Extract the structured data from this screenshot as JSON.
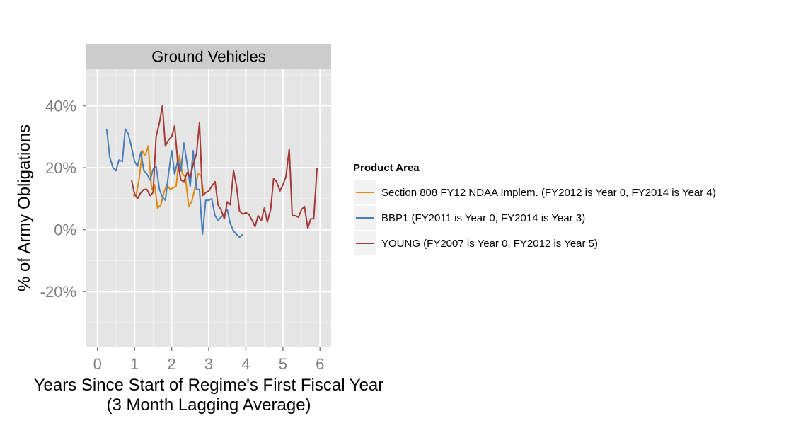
{
  "chart_data": {
    "type": "line",
    "facet_title": "Ground Vehicles",
    "xlabel_line1": "Years Since Start of Regime's First Fiscal Year",
    "xlabel_line2": "(3 Month Lagging Average)",
    "ylabel": "% of Army Obligations",
    "xlim": [
      -0.3,
      6.3
    ],
    "ylim": [
      -38,
      52
    ],
    "x_ticks": [
      0,
      1,
      2,
      3,
      4,
      5,
      6
    ],
    "x_tick_labels": [
      "0",
      "1",
      "2",
      "3",
      "4",
      "5",
      "6"
    ],
    "y_ticks": [
      -20,
      0,
      20,
      40
    ],
    "y_tick_labels": [
      "-20%",
      "0%",
      "20%",
      "40%"
    ],
    "grid": true,
    "legend": {
      "title": "Product Area",
      "position": "right"
    },
    "series": [
      {
        "name": "Section 808 FY12 NDAA Implem. (FY2012 is Year 0, FY2014 is Year 4)",
        "color": "#E08A0B",
        "x": [
          0.96,
          1.04,
          1.12,
          1.21,
          1.29,
          1.37,
          1.46,
          1.54,
          1.62,
          1.71,
          1.79,
          1.87,
          1.96,
          2.04,
          2.12,
          2.21,
          2.29,
          2.37,
          2.46,
          2.54,
          2.62,
          2.71,
          2.79,
          2.87
        ],
        "y": [
          11,
          11,
          16,
          25.5,
          24,
          27,
          13,
          14.5,
          7,
          8,
          12,
          14.5,
          13,
          13.5,
          14,
          24,
          18,
          17,
          7.5,
          9,
          13,
          18,
          17.5,
          11
        ]
      },
      {
        "name": "BBP1 (FY2011 is Year 0, FY2014 is Year 3)",
        "color": "#4A7EBB",
        "x": [
          0.25,
          0.33,
          0.42,
          0.5,
          0.58,
          0.67,
          0.75,
          0.83,
          0.92,
          1.0,
          1.08,
          1.17,
          1.25,
          1.33,
          1.42,
          1.5,
          1.58,
          1.67,
          1.75,
          1.83,
          1.92,
          2.0,
          2.08,
          2.17,
          2.25,
          2.33,
          2.42,
          2.5,
          2.58,
          2.67,
          2.75,
          2.83,
          2.92,
          3.0,
          3.08,
          3.17,
          3.25,
          3.33,
          3.42,
          3.5,
          3.58,
          3.67,
          3.75,
          3.83,
          3.92
        ],
        "y": [
          32.5,
          23.5,
          20,
          19,
          22.5,
          22,
          32.5,
          31,
          26.5,
          22,
          20.5,
          25,
          19,
          18,
          16,
          19.5,
          20.5,
          13,
          10.5,
          9.5,
          18.5,
          25.5,
          18,
          22.5,
          19,
          28,
          21,
          14,
          25.5,
          13,
          13,
          -1.5,
          9.5,
          9.5,
          10,
          4.5,
          3,
          4,
          5,
          6.5,
          2,
          -0.5,
          -1.5,
          -2.5,
          -1.5
        ]
      },
      {
        "name": "YOUNG (FY2007 is Year 0, FY2012 is Year 5)",
        "color": "#A33A36",
        "x": [
          0.92,
          1.0,
          1.08,
          1.17,
          1.25,
          1.33,
          1.42,
          1.5,
          1.58,
          1.67,
          1.75,
          1.83,
          1.92,
          2.0,
          2.08,
          2.17,
          2.25,
          2.33,
          2.42,
          2.5,
          2.58,
          2.67,
          2.75,
          2.83,
          2.92,
          3.0,
          3.08,
          3.17,
          3.25,
          3.33,
          3.42,
          3.5,
          3.58,
          3.67,
          3.75,
          3.83,
          3.92,
          4.0,
          4.08,
          4.17,
          4.25,
          4.33,
          4.42,
          4.5,
          4.58,
          4.67,
          4.75,
          4.83,
          4.92,
          5.0,
          5.08,
          5.17,
          5.25,
          5.33,
          5.42,
          5.5,
          5.58,
          5.67,
          5.75,
          5.83,
          5.92
        ],
        "y": [
          16,
          11.5,
          10,
          12,
          13,
          13,
          11,
          12,
          30,
          34.5,
          40,
          27,
          29,
          30,
          33.5,
          21,
          16,
          15.5,
          18.5,
          17,
          21,
          24.5,
          34.5,
          11,
          12,
          12.5,
          14,
          15.5,
          8,
          6.5,
          3.5,
          9,
          8,
          19,
          14,
          6,
          5,
          5.5,
          5,
          3,
          1,
          4.5,
          3,
          7,
          2.5,
          6.5,
          16.5,
          15.5,
          12.5,
          14.5,
          17,
          26,
          4.5,
          4.5,
          4,
          6.5,
          7.5,
          0.5,
          3.5,
          3.5,
          20
        ]
      }
    ]
  }
}
